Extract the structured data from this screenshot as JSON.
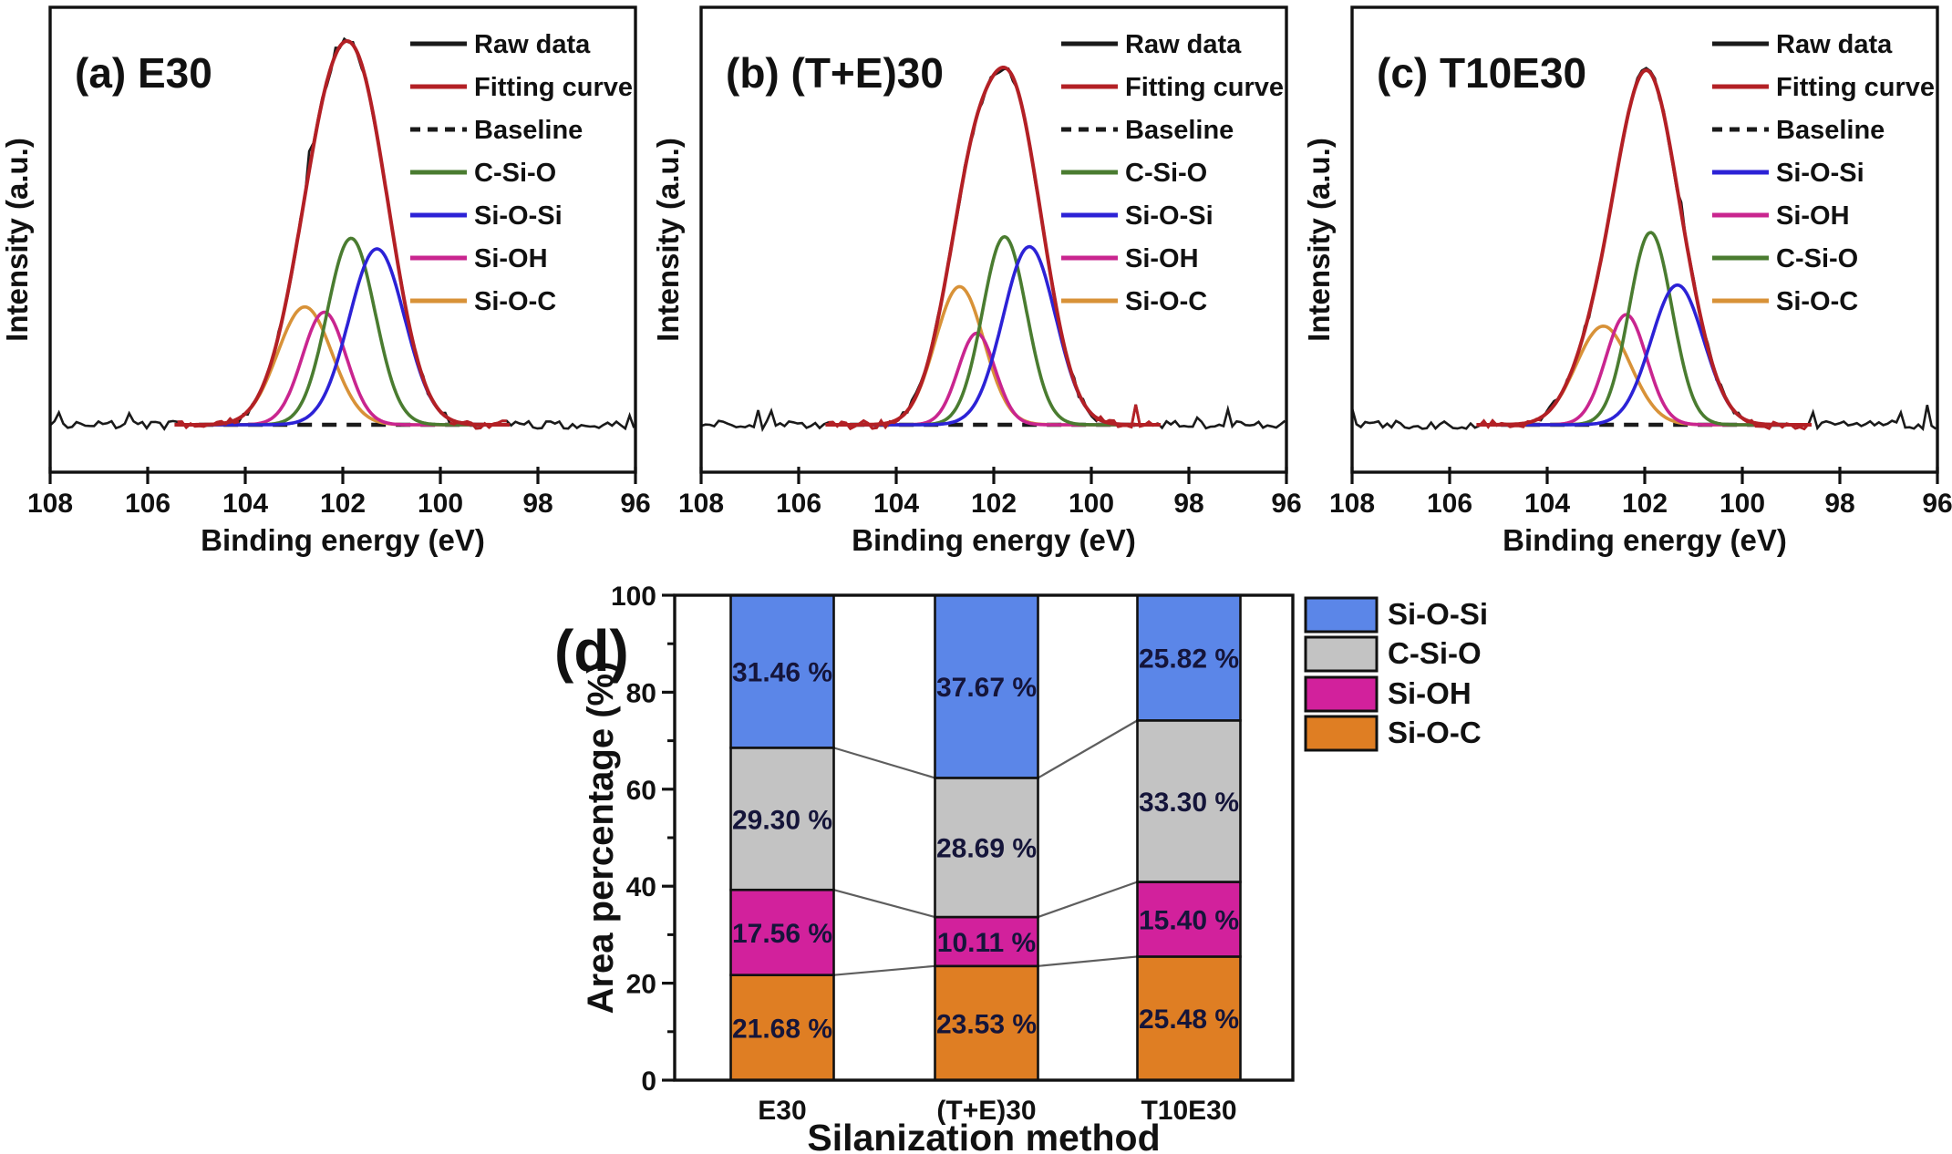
{
  "figure": {
    "background": "#ffffff"
  },
  "percent_suffix": " %",
  "chart_data": [
    {
      "id": "a",
      "type": "line",
      "title": "(a) E30",
      "xlabel": "Binding energy (eV)",
      "ylabel": "Intensity (a.u.)",
      "x_range": [
        108,
        96
      ],
      "x_axis_reversed": true,
      "x_ticks": [
        108,
        106,
        104,
        102,
        100,
        98,
        96
      ],
      "y_axis": "arbitrary units, no ticks",
      "legend_position": "top-right inside",
      "legend": [
        {
          "label": "Raw data",
          "color": "#1a1a1a",
          "dash": false
        },
        {
          "label": "Fitting curve",
          "color": "#b32025",
          "dash": false
        },
        {
          "label": "Baseline",
          "color": "#1a1a1a",
          "dash": true
        },
        {
          "label": "C-Si-O",
          "color": "#4a7c30",
          "dash": false
        },
        {
          "label": "Si-O-Si",
          "color": "#2c22d6",
          "dash": false
        },
        {
          "label": "Si-OH",
          "color": "#c9258f",
          "dash": false
        },
        {
          "label": "Si-O-C",
          "color": "#d89238",
          "dash": false
        }
      ],
      "peaks": [
        {
          "name": "Si-O-C",
          "center_eV": 102.78,
          "rel_height": 0.335,
          "sigma_eV": 0.56,
          "color": "#d89238"
        },
        {
          "name": "Si-OH",
          "center_eV": 102.38,
          "rel_height": 0.32,
          "sigma_eV": 0.45,
          "color": "#c9258f"
        },
        {
          "name": "C-Si-O",
          "center_eV": 101.83,
          "rel_height": 0.53,
          "sigma_eV": 0.49,
          "color": "#4a7c30"
        },
        {
          "name": "Si-O-Si",
          "center_eV": 101.3,
          "rel_height": 0.5,
          "sigma_eV": 0.57,
          "color": "#2c22d6"
        }
      ],
      "raw_color": "#1a1a1a",
      "fit_color": "#b32025",
      "baseline_color": "#1a1a1a"
    },
    {
      "id": "b",
      "type": "line",
      "title": "(b) (T+E)30",
      "xlabel": "Binding energy (eV)",
      "ylabel": "Intensity (a.u.)",
      "x_range": [
        108,
        96
      ],
      "x_axis_reversed": true,
      "x_ticks": [
        108,
        106,
        104,
        102,
        100,
        98,
        96
      ],
      "y_axis": "arbitrary units, no ticks",
      "legend_position": "top-right inside",
      "legend": [
        {
          "label": "Raw data",
          "color": "#1a1a1a",
          "dash": false
        },
        {
          "label": "Fitting curve",
          "color": "#b32025",
          "dash": false
        },
        {
          "label": "Baseline",
          "color": "#1a1a1a",
          "dash": true
        },
        {
          "label": "C-Si-O",
          "color": "#4a7c30",
          "dash": false
        },
        {
          "label": "Si-O-Si",
          "color": "#2c22d6",
          "dash": false
        },
        {
          "label": "Si-OH",
          "color": "#c9258f",
          "dash": false
        },
        {
          "label": "Si-O-C",
          "color": "#d89238",
          "dash": false
        }
      ],
      "peaks": [
        {
          "name": "Si-O-C",
          "center_eV": 102.7,
          "rel_height": 0.415,
          "sigma_eV": 0.5,
          "color": "#d89238"
        },
        {
          "name": "Si-OH",
          "center_eV": 102.35,
          "rel_height": 0.275,
          "sigma_eV": 0.38,
          "color": "#c9258f"
        },
        {
          "name": "C-Si-O",
          "center_eV": 101.78,
          "rel_height": 0.565,
          "sigma_eV": 0.45,
          "color": "#4a7c30"
        },
        {
          "name": "Si-O-Si",
          "center_eV": 101.27,
          "rel_height": 0.535,
          "sigma_eV": 0.54,
          "color": "#2c22d6"
        }
      ],
      "raw_color": "#1a1a1a",
      "fit_color": "#b32025",
      "baseline_color": "#1a1a1a"
    },
    {
      "id": "c",
      "type": "line",
      "title": "(c) T10E30",
      "xlabel": "Binding energy (eV)",
      "ylabel": "Intensity (a.u.)",
      "x_range": [
        108,
        96
      ],
      "x_axis_reversed": true,
      "x_ticks": [
        108,
        106,
        104,
        102,
        100,
        98,
        96
      ],
      "y_axis": "arbitrary units, no ticks",
      "legend_position": "top-right inside",
      "legend": [
        {
          "label": "Raw data",
          "color": "#1a1a1a",
          "dash": false
        },
        {
          "label": "Fitting curve",
          "color": "#b32025",
          "dash": false
        },
        {
          "label": "Baseline",
          "color": "#1a1a1a",
          "dash": true
        },
        {
          "label": "Si-O-Si",
          "color": "#2c22d6",
          "dash": false
        },
        {
          "label": "Si-OH",
          "color": "#c9258f",
          "dash": false
        },
        {
          "label": "C-Si-O",
          "color": "#4a7c30",
          "dash": false
        },
        {
          "label": "Si-O-C",
          "color": "#d89238",
          "dash": false
        }
      ],
      "peaks": [
        {
          "name": "Si-O-C",
          "center_eV": 102.85,
          "rel_height": 0.3,
          "sigma_eV": 0.56,
          "color": "#d89238"
        },
        {
          "name": "Si-OH",
          "center_eV": 102.38,
          "rel_height": 0.335,
          "sigma_eV": 0.42,
          "color": "#c9258f"
        },
        {
          "name": "C-Si-O",
          "center_eV": 101.88,
          "rel_height": 0.585,
          "sigma_eV": 0.44,
          "color": "#4a7c30"
        },
        {
          "name": "Si-O-Si",
          "center_eV": 101.33,
          "rel_height": 0.425,
          "sigma_eV": 0.54,
          "color": "#2c22d6"
        }
      ],
      "raw_color": "#1a1a1a",
      "fit_color": "#b32025",
      "baseline_color": "#1a1a1a"
    },
    {
      "id": "d",
      "type": "bar",
      "stacked": true,
      "title": "(d)",
      "xlabel": "Silanization method",
      "ylabel": "Area percentage (%)",
      "ylim": [
        0,
        100
      ],
      "y_major_ticks": [
        0,
        20,
        40,
        60,
        80,
        100
      ],
      "y_minor_ticks": [
        10,
        30,
        50,
        70,
        90
      ],
      "categories": [
        "E30",
        "(T+E)30",
        "T10E30"
      ],
      "series": [
        {
          "name": "Si-O-C",
          "color": "#df7e23",
          "values": [
            21.68,
            23.53,
            25.48
          ]
        },
        {
          "name": "Si-OH",
          "color": "#d2219c",
          "values": [
            17.56,
            10.11,
            15.4
          ]
        },
        {
          "name": "C-Si-O",
          "color": "#c3c3c3",
          "values": [
            29.3,
            28.69,
            33.3
          ]
        },
        {
          "name": "Si-O-Si",
          "color": "#5b86e8",
          "values": [
            31.46,
            37.67,
            25.82
          ]
        }
      ],
      "legend_order": [
        "Si-O-Si",
        "C-Si-O",
        "Si-OH",
        "Si-O-C"
      ],
      "legend_position": "right of plot",
      "grid": false,
      "value_label_color": "#15153a",
      "connector_color": "#5e5e5e",
      "bar_border_color": "#111111"
    }
  ]
}
